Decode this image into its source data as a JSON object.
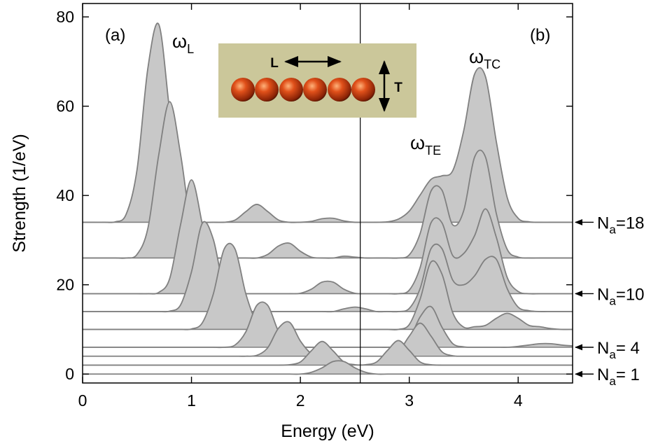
{
  "chart_data": {
    "type": "waterfall",
    "x_label": "Energy (eV)",
    "y_label": "Strength (1/eV)",
    "xlim": [
      0,
      4.5
    ],
    "ylim": [
      -2,
      83
    ],
    "xticks": [
      0,
      1,
      2,
      3,
      4
    ],
    "yticks": [
      0,
      20,
      40,
      60,
      80
    ],
    "fill_color": "#c8c8c8",
    "line_color": "#808080",
    "divider_x": 2.55,
    "panel_labels": [
      "(a)",
      "(b)"
    ],
    "annotations": [
      {
        "symbol": "ω",
        "sub": "L"
      },
      {
        "symbol": "ω",
        "sub": "TC"
      },
      {
        "symbol": "ω",
        "sub": "TE"
      }
    ],
    "inset": {
      "long_label": "L",
      "trans_label": "T"
    },
    "x": [
      0,
      0.1,
      0.2,
      0.3,
      0.4,
      0.5,
      0.6,
      0.7,
      0.8,
      0.9,
      1,
      1.1,
      1.2,
      1.3,
      1.4,
      1.5,
      1.6,
      1.7,
      1.8,
      1.9,
      2,
      2.1,
      2.2,
      2.3,
      2.4,
      2.5,
      2.6,
      2.7,
      2.8,
      2.9,
      3,
      3.1,
      3.2,
      3.3,
      3.4,
      3.5,
      3.6,
      3.7,
      3.8,
      3.9,
      4,
      4.1,
      4.2,
      4.3,
      4.4,
      4.5
    ],
    "series": [
      {
        "label": {
          "base": "N",
          "sub": "a",
          "text": "=18"
        },
        "baseline": 34,
        "values": [
          34,
          34,
          34,
          34.1,
          35.8,
          45.8,
          68.6,
          78.3,
          58.8,
          40.1,
          34.7,
          34,
          34,
          34,
          34.5,
          36.4,
          38,
          36.4,
          34.5,
          34,
          34,
          34.2,
          34.8,
          34.9,
          34.3,
          34,
          34,
          34,
          34.1,
          34.7,
          36.5,
          40.1,
          43.6,
          44.4,
          45.6,
          54.5,
          67.2,
          66.6,
          52,
          39.5,
          34.9,
          34.1,
          34,
          34,
          34,
          34
        ]
      },
      {
        "baseline": 26,
        "values": [
          26,
          26,
          26,
          26,
          26,
          26.8,
          32.7,
          49.2,
          61,
          49.2,
          32.7,
          26.8,
          26,
          26,
          26,
          26,
          26,
          26.8,
          28.7,
          29.3,
          27.5,
          26.2,
          26,
          26,
          26.4,
          26.2,
          26,
          26,
          26,
          26,
          26.7,
          31.5,
          41,
          41.2,
          33.4,
          36.6,
          48.6,
          48.6,
          35.9,
          27.9,
          26.2,
          26,
          26,
          26,
          26,
          26
        ]
      },
      {
        "label": {
          "base": "N",
          "sub": "a",
          "text": "=10"
        },
        "baseline": 18,
        "values": [
          18,
          18,
          18,
          18,
          18,
          18,
          18,
          18.3,
          21.4,
          33.5,
          43.5,
          33.5,
          21.4,
          18.3,
          18,
          18,
          18,
          18,
          18,
          18,
          18.1,
          19,
          20.6,
          20.6,
          19,
          18.1,
          18,
          18,
          18,
          18,
          18.8,
          23.9,
          33.9,
          33.9,
          26.5,
          27,
          31,
          37,
          30.6,
          21.6,
          18.5,
          18,
          18,
          18,
          18,
          18
        ]
      },
      {
        "baseline": 14,
        "values": [
          14,
          14,
          14,
          14,
          14,
          14,
          14,
          14,
          14.1,
          15.5,
          22.9,
          33.8,
          30.2,
          18.9,
          14.5,
          14,
          14,
          14,
          14,
          14,
          14,
          14,
          14,
          14,
          14.6,
          15,
          14.6,
          14,
          14,
          14,
          14.7,
          19.2,
          28.1,
          28.1,
          21,
          20,
          22,
          25.7,
          25.7,
          19.1,
          15,
          14.2,
          14,
          14,
          14,
          14
        ]
      },
      {
        "baseline": 10,
        "values": [
          10,
          10,
          10,
          10,
          10,
          10,
          10,
          10,
          10,
          10,
          10.1,
          11.5,
          17.9,
          28,
          28,
          17.9,
          11.5,
          10.1,
          10,
          10,
          10,
          10,
          10,
          10,
          10,
          10,
          10,
          10,
          10,
          10,
          11.1,
          16.8,
          25.1,
          22.4,
          13.7,
          10.5,
          10.6,
          10.9,
          12.5,
          13.6,
          12.5,
          10.9,
          10.6,
          10.2,
          10,
          10
        ]
      },
      {
        "label": {
          "base": "N",
          "sub": "a",
          "text": "= 4"
        },
        "baseline": 6,
        "values": [
          6,
          6,
          6,
          6,
          6,
          6,
          6,
          6,
          6,
          6,
          6,
          6,
          6,
          6,
          6.5,
          9.5,
          15.4,
          15.4,
          9.5,
          6.5,
          6.1,
          6,
          6,
          6,
          6,
          6,
          6,
          6,
          6,
          6.2,
          7.8,
          12.8,
          15.1,
          10.5,
          6.8,
          6.1,
          6,
          6,
          6,
          6,
          6.2,
          6.5,
          6.8,
          6.8,
          6.5,
          6.3
        ]
      },
      {
        "baseline": 4,
        "values": [
          4,
          4,
          4,
          4,
          4,
          4,
          4,
          4,
          4,
          4,
          4,
          4,
          4,
          4,
          4,
          4,
          4.2,
          5.9,
          10.3,
          11.6,
          7.4,
          4.6,
          4.1,
          4,
          4,
          4,
          4,
          4,
          4.1,
          5,
          8.5,
          11.4,
          8.5,
          5,
          4.1,
          4,
          4,
          4,
          4,
          4,
          4,
          4,
          4,
          4,
          4,
          4
        ]
      },
      {
        "baseline": 2,
        "values": [
          2,
          2,
          2,
          2,
          2,
          2,
          2,
          2,
          2,
          2,
          2,
          2,
          2,
          2,
          2,
          2,
          2,
          2,
          2,
          2.1,
          2.7,
          5.2,
          7.3,
          5.2,
          2.7,
          2.1,
          2.1,
          2.7,
          5.3,
          7.5,
          5.3,
          2.7,
          2.1,
          2,
          2,
          2,
          2,
          2,
          2,
          2,
          2,
          2,
          2,
          2,
          2,
          2
        ]
      },
      {
        "label": {
          "base": "N",
          "sub": "a",
          "text": "= 1"
        },
        "baseline": 0,
        "values": [
          0,
          0,
          0,
          0,
          0,
          0,
          0,
          0,
          0,
          0,
          0,
          0,
          0,
          0,
          0,
          0,
          0,
          0,
          0,
          0,
          0,
          0.4,
          1.4,
          2.8,
          2.8,
          1.4,
          0.4,
          0,
          0,
          0,
          0,
          0,
          0,
          0,
          0,
          0,
          0,
          0,
          0,
          0,
          0,
          0,
          0,
          0,
          0,
          0
        ]
      }
    ]
  }
}
